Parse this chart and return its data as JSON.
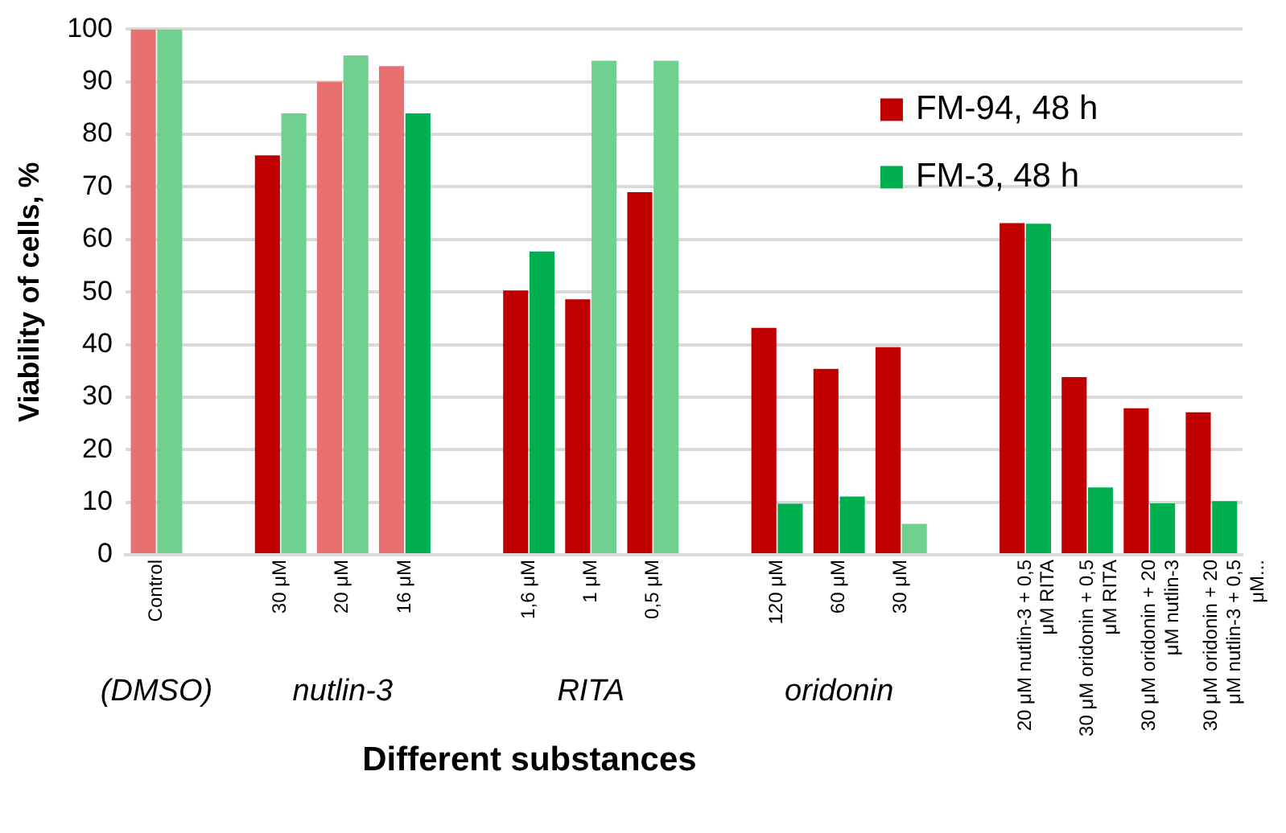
{
  "chart_data": {
    "type": "bar",
    "xlabel": "Different substances",
    "ylabel": "Viability of cells, %",
    "categories": [
      "Control",
      null,
      "30 μM",
      "20 μM",
      "16 μM",
      null,
      "1,6 μM",
      "1 μM",
      "0,5 μM",
      null,
      "120 μM",
      "60 μM",
      "30 μM",
      null,
      "20 μM nutlin-3 + 0,5 μM RITA",
      "30 μM oridonin + 0,5 μM RITA",
      "30 μM oridonin + 20 μM nutlin-3",
      "30 μM oridonin + 20 μM nutlin-3 + 0,5 μM..."
    ],
    "series": [
      {
        "name": "FM-94, 48 h",
        "color": "#c00000",
        "colors": [
          "#e87070",
          "#c00000",
          "#c00000",
          "#e87070",
          "#e87070",
          "#c00000",
          "#c00000",
          "#c00000",
          "#c00000",
          "#c00000",
          "#c00000",
          "#c00000",
          "#c00000",
          "#c00000",
          "#c00000",
          "#c00000",
          "#c00000",
          "#c00000"
        ],
        "values": [
          100,
          null,
          76,
          90,
          93,
          null,
          50.3,
          48.6,
          69,
          null,
          43.2,
          35.4,
          39.5,
          null,
          63.1,
          33.8,
          27.9,
          27.1
        ]
      },
      {
        "name": "FM-3, 48 h",
        "color": "#00b050",
        "colors": [
          "#70d090",
          "#00b050",
          "#70d090",
          "#70d090",
          "#00b050",
          "#00b050",
          "#00b050",
          "#70d090",
          "#70d090",
          "#00b050",
          "#00b050",
          "#00b050",
          "#70d090",
          "#00b050",
          "#00b050",
          "#00b050",
          "#00b050",
          "#00b050"
        ],
        "values": [
          100,
          null,
          84,
          95,
          84,
          null,
          57.7,
          94,
          94,
          null,
          9.7,
          11.1,
          5.9,
          null,
          63,
          12.8,
          9.8,
          10.2
        ]
      }
    ],
    "ylim": [
      0,
      100
    ],
    "yticks": [
      0,
      10,
      20,
      30,
      40,
      50,
      60,
      70,
      80,
      90,
      100
    ],
    "grid": "y",
    "legend": "top right",
    "annotations": [
      "(DMSO)",
      "nutlin-3",
      "RITA",
      "oridonin"
    ]
  }
}
